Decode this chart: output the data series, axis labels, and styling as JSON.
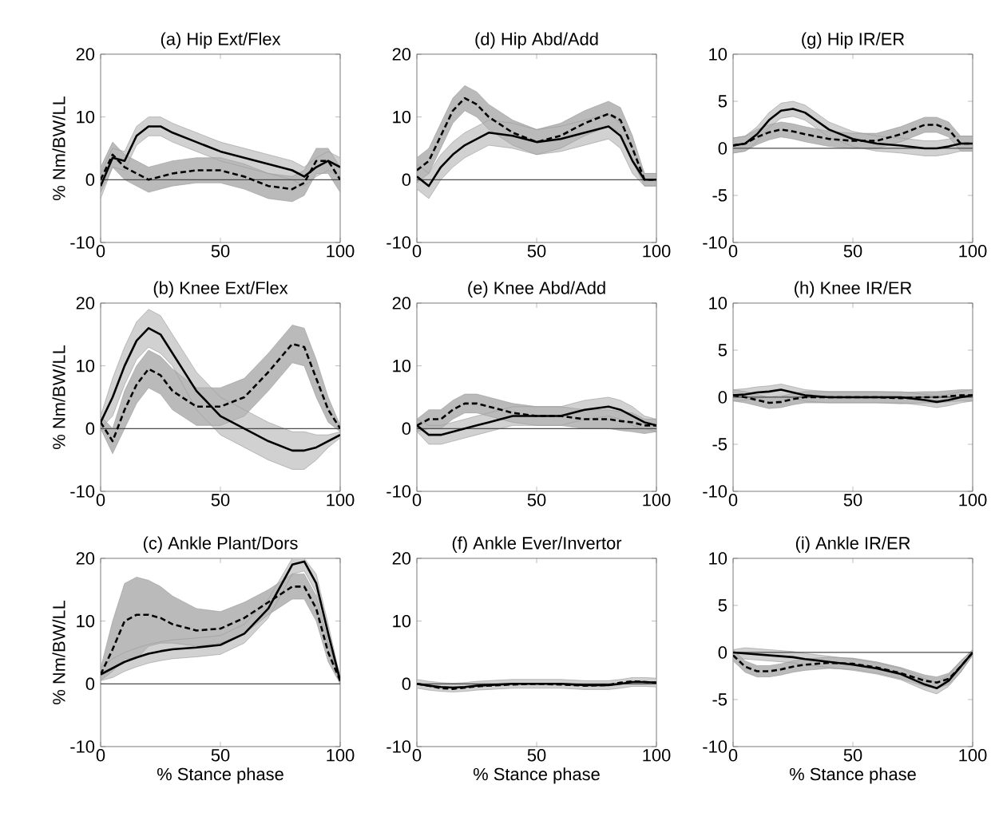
{
  "chart_data": [
    {
      "type": "line",
      "title": "(a) Hip Ext/Flex",
      "ylabel": "% Nm/BW/LL",
      "xlim": [
        0,
        100
      ],
      "xticks": [
        0,
        50,
        100
      ],
      "ylim": [
        -10,
        20
      ],
      "yticks": [
        -10,
        0,
        10,
        20
      ],
      "ref_lines": [
        {
          "axis": "y",
          "value": 0
        }
      ],
      "x": [
        0,
        5,
        10,
        15,
        20,
        25,
        30,
        40,
        50,
        60,
        70,
        80,
        85,
        90,
        95,
        100
      ],
      "series": [
        {
          "color": "#000000",
          "line_style": "solid",
          "values": [
            -1,
            3.5,
            3,
            7,
            8.5,
            8.5,
            7.5,
            6,
            4.5,
            3.5,
            2.5,
            1.5,
            0.5,
            2,
            3,
            2
          ],
          "lower": [
            -3,
            2,
            1.5,
            5.5,
            7,
            7,
            6,
            4.5,
            3,
            2,
            1,
            0,
            -1,
            0.5,
            1.5,
            0.5
          ],
          "upper": [
            1,
            5,
            4.5,
            8.5,
            10,
            10,
            9,
            7.5,
            6,
            5,
            4,
            3,
            2,
            3.5,
            4.5,
            3.5
          ]
        },
        {
          "color": "#000000",
          "line_style": "dashed",
          "values": [
            0,
            4,
            2,
            1,
            0,
            0.5,
            1,
            1.5,
            1.5,
            0.5,
            -1,
            -1.5,
            -0.5,
            3,
            3,
            0
          ],
          "lower": [
            -2,
            2,
            0,
            -1,
            -2,
            -1.5,
            -1,
            -0.5,
            -0.5,
            -1.5,
            -3,
            -3.5,
            -2.5,
            1,
            1,
            -2
          ],
          "upper": [
            2,
            6,
            4,
            3,
            2,
            2.5,
            3,
            3.5,
            3.5,
            2.5,
            1,
            0.5,
            1.5,
            5,
            5,
            2
          ]
        }
      ]
    },
    {
      "type": "line",
      "title": "(d) Hip Abd/Add",
      "xlim": [
        0,
        100
      ],
      "xticks": [
        0,
        50,
        100
      ],
      "ylim": [
        -10,
        20
      ],
      "yticks": [
        -10,
        0,
        10,
        20
      ],
      "ref_lines": [
        {
          "axis": "y",
          "value": 0
        }
      ],
      "x": [
        0,
        5,
        10,
        15,
        20,
        25,
        30,
        40,
        50,
        60,
        70,
        80,
        85,
        90,
        95,
        100
      ],
      "series": [
        {
          "color": "#000000",
          "line_style": "solid",
          "values": [
            0.5,
            -1,
            2,
            4,
            5.5,
            6.5,
            7.5,
            7,
            6,
            6.5,
            7.5,
            8.5,
            7,
            3,
            0,
            0
          ],
          "lower": [
            -1.5,
            -3,
            0,
            2,
            3.5,
            4.5,
            5.5,
            5,
            4,
            4.5,
            5.5,
            6.5,
            5,
            1,
            -1,
            -1
          ],
          "upper": [
            2.5,
            1,
            4,
            6,
            7.5,
            8.5,
            9.5,
            9,
            8,
            8.5,
            9.5,
            10.5,
            9,
            5,
            1,
            1
          ]
        },
        {
          "color": "#000000",
          "line_style": "dashed",
          "values": [
            1.5,
            3,
            7,
            11,
            13,
            12,
            10,
            7.5,
            6,
            7,
            9,
            10.5,
            9.5,
            5,
            0,
            0
          ],
          "lower": [
            -0.5,
            1,
            5,
            9,
            11,
            10,
            8,
            5.5,
            4,
            5,
            7,
            8.5,
            7.5,
            3,
            -1,
            -1
          ],
          "upper": [
            3.5,
            5,
            9,
            13,
            15,
            14,
            12,
            9.5,
            8,
            9,
            11,
            12.5,
            11.5,
            7,
            1,
            1
          ]
        }
      ]
    },
    {
      "type": "line",
      "title": "(g) Hip IR/ER",
      "xlim": [
        0,
        100
      ],
      "xticks": [
        0,
        50,
        100
      ],
      "ylim": [
        -10,
        10
      ],
      "yticks": [
        -10,
        -5,
        0,
        5,
        10
      ],
      "ref_lines": [
        {
          "axis": "y",
          "value": 0
        }
      ],
      "x": [
        0,
        5,
        10,
        15,
        20,
        25,
        30,
        40,
        50,
        60,
        70,
        80,
        85,
        90,
        95,
        100
      ],
      "series": [
        {
          "color": "#000000",
          "line_style": "solid",
          "values": [
            0.3,
            0.5,
            1.5,
            3,
            4,
            4.2,
            3.8,
            2,
            1,
            0.5,
            0.3,
            0,
            0,
            0.2,
            0.5,
            0.5
          ],
          "lower": [
            -0.5,
            -0.3,
            0.7,
            2.2,
            3.2,
            3.4,
            3,
            1.2,
            0.2,
            -0.3,
            -0.5,
            -0.8,
            -0.8,
            -0.6,
            -0.3,
            -0.3
          ],
          "upper": [
            1.1,
            1.3,
            2.3,
            3.8,
            4.8,
            5,
            4.6,
            2.8,
            1.8,
            1.3,
            1.1,
            0.8,
            0.8,
            1,
            1.3,
            1.3
          ]
        },
        {
          "color": "#000000",
          "line_style": "dashed",
          "values": [
            0.3,
            0.5,
            1.2,
            1.7,
            2,
            1.8,
            1.5,
            1,
            0.8,
            0.8,
            1.5,
            2.5,
            2.5,
            2,
            0.5,
            0.5
          ],
          "lower": [
            -0.5,
            -0.3,
            0.4,
            0.9,
            1.2,
            1,
            0.7,
            0.2,
            0,
            0,
            0.7,
            1.7,
            1.7,
            1.2,
            -0.3,
            -0.3
          ],
          "upper": [
            1.1,
            1.3,
            2,
            2.5,
            2.8,
            2.6,
            2.3,
            1.8,
            1.6,
            1.6,
            2.3,
            3.3,
            3.3,
            2.8,
            1.3,
            1.3
          ]
        }
      ]
    },
    {
      "type": "line",
      "title": "(b) Knee Ext/Flex",
      "ylabel": "% Nm/BW/LL",
      "xlim": [
        0,
        100
      ],
      "xticks": [
        0,
        50,
        100
      ],
      "ylim": [
        -10,
        20
      ],
      "yticks": [
        -10,
        0,
        10,
        20
      ],
      "ref_lines": [
        {
          "axis": "y",
          "value": 0
        }
      ],
      "x": [
        0,
        5,
        10,
        15,
        20,
        25,
        30,
        40,
        50,
        60,
        70,
        80,
        85,
        90,
        95,
        100
      ],
      "series": [
        {
          "color": "#000000",
          "line_style": "solid",
          "values": [
            1,
            5,
            10,
            14,
            16,
            15,
            12,
            6,
            2,
            0,
            -2,
            -3.5,
            -3.5,
            -3,
            -2,
            -1
          ],
          "lower": [
            0,
            2,
            7,
            11,
            13,
            12,
            10,
            3,
            -1,
            -3,
            -5,
            -6.5,
            -6.5,
            -5,
            -3,
            -1.5
          ],
          "upper": [
            2,
            8,
            13,
            17,
            19,
            18,
            15,
            9,
            5,
            3,
            1,
            -0.5,
            -0.5,
            -1,
            -1,
            -0.5
          ]
        },
        {
          "color": "#000000",
          "line_style": "dashed",
          "values": [
            1,
            -2,
            3,
            7,
            9.5,
            8.5,
            6,
            3.5,
            3.5,
            5,
            9,
            13.5,
            13,
            8,
            3,
            0
          ],
          "lower": [
            0,
            -4,
            0,
            4,
            6.5,
            5.5,
            3,
            0.5,
            0.5,
            2,
            6,
            10.5,
            10,
            5,
            1,
            -0.5
          ],
          "upper": [
            2,
            0,
            6,
            10,
            12.5,
            11.5,
            9.5,
            6.5,
            6.5,
            8,
            12,
            16.5,
            16,
            11,
            5,
            0.5
          ]
        }
      ]
    },
    {
      "type": "line",
      "title": "(e) Knee Abd/Add",
      "xlim": [
        0,
        100
      ],
      "xticks": [
        0,
        50,
        100
      ],
      "ylim": [
        -10,
        20
      ],
      "yticks": [
        -10,
        0,
        10,
        20
      ],
      "ref_lines": [
        {
          "axis": "y",
          "value": 0
        }
      ],
      "x": [
        0,
        5,
        10,
        15,
        20,
        25,
        30,
        40,
        50,
        60,
        70,
        80,
        85,
        90,
        95,
        100
      ],
      "series": [
        {
          "color": "#000000",
          "line_style": "solid",
          "values": [
            0.5,
            -1,
            -1,
            -0.5,
            0,
            0.5,
            1,
            2,
            2,
            2,
            3,
            3.5,
            3,
            2,
            1,
            0.5
          ],
          "lower": [
            -0.5,
            -2.5,
            -2.5,
            -2,
            -1.5,
            -1,
            -0.5,
            0.5,
            0.5,
            0.5,
            1.5,
            2,
            1.5,
            0.5,
            0,
            -0.5
          ],
          "upper": [
            1.5,
            0.5,
            0.5,
            1,
            1.5,
            2,
            2.5,
            3.5,
            3.5,
            3.5,
            4.5,
            5,
            4.5,
            3.5,
            2,
            1.5
          ]
        },
        {
          "color": "#000000",
          "line_style": "dashed",
          "values": [
            0.5,
            1.5,
            1.5,
            3,
            4,
            4,
            3.5,
            2.5,
            2,
            2,
            1.5,
            1.5,
            1.2,
            1,
            0.5,
            0.5
          ],
          "lower": [
            -0.5,
            0,
            0,
            1.5,
            2.5,
            2.5,
            2,
            1,
            0.5,
            0.5,
            0,
            0,
            -0.3,
            -0.5,
            -0.8,
            -0.5
          ],
          "upper": [
            1.5,
            3,
            3,
            4.5,
            5.5,
            5.5,
            5,
            4,
            3.5,
            3.5,
            3,
            3,
            2.7,
            2.5,
            1.5,
            1.5
          ]
        }
      ]
    },
    {
      "type": "line",
      "title": "(h) Knee IR/ER",
      "xlim": [
        0,
        100
      ],
      "xticks": [
        0,
        50,
        100
      ],
      "ylim": [
        -10,
        10
      ],
      "yticks": [
        -10,
        -5,
        0,
        5,
        10
      ],
      "ref_lines": [
        {
          "axis": "y",
          "value": 0
        }
      ],
      "x": [
        0,
        5,
        10,
        15,
        20,
        25,
        30,
        40,
        50,
        60,
        70,
        80,
        85,
        90,
        95,
        100
      ],
      "series": [
        {
          "color": "#000000",
          "line_style": "solid",
          "values": [
            0.2,
            0.3,
            0.5,
            0.6,
            0.8,
            0.5,
            0.2,
            0,
            0,
            0,
            0,
            -0.3,
            -0.5,
            -0.3,
            0,
            0.2
          ],
          "lower": [
            -0.4,
            -0.3,
            -0.1,
            0,
            0.2,
            -0.1,
            -0.4,
            -0.6,
            -0.6,
            -0.6,
            -0.6,
            -0.9,
            -1.1,
            -0.9,
            -0.6,
            -0.4
          ],
          "upper": [
            0.8,
            0.9,
            1.1,
            1.2,
            1.4,
            1.1,
            0.8,
            0.6,
            0.6,
            0.6,
            0.6,
            0.3,
            0.1,
            0.3,
            0.6,
            0.8
          ]
        },
        {
          "color": "#000000",
          "line_style": "dashed",
          "values": [
            0.2,
            0,
            -0.3,
            -0.6,
            -0.5,
            -0.2,
            0,
            0,
            0,
            0,
            -0.1,
            0,
            0,
            0.1,
            0.2,
            0.2
          ],
          "lower": [
            -0.4,
            -0.6,
            -0.9,
            -1.2,
            -1.1,
            -0.8,
            -0.6,
            -0.6,
            -0.6,
            -0.6,
            -0.7,
            -0.6,
            -0.6,
            -0.5,
            -0.4,
            -0.4
          ],
          "upper": [
            0.8,
            0.6,
            0.3,
            0,
            0.1,
            0.4,
            0.6,
            0.6,
            0.6,
            0.6,
            0.5,
            0.6,
            0.6,
            0.7,
            0.8,
            0.8
          ]
        }
      ]
    },
    {
      "type": "line",
      "title": "(c) Ankle Plant/Dors",
      "ylabel": "% Nm/BW/LL",
      "xlabel": "% Stance phase",
      "xlim": [
        0,
        100
      ],
      "xticks": [
        0,
        50,
        100
      ],
      "ylim": [
        -10,
        20
      ],
      "yticks": [
        -10,
        0,
        10,
        20
      ],
      "ref_lines": [
        {
          "axis": "y",
          "value": 0
        }
      ],
      "x": [
        0,
        5,
        10,
        15,
        20,
        25,
        30,
        40,
        50,
        60,
        70,
        80,
        85,
        90,
        95,
        100
      ],
      "series": [
        {
          "color": "#000000",
          "line_style": "solid",
          "values": [
            1.5,
            2.5,
            3.5,
            4.2,
            4.8,
            5.2,
            5.5,
            5.8,
            6.2,
            8,
            12,
            19,
            19.5,
            16,
            8,
            0.5
          ],
          "lower": [
            0.5,
            1,
            2,
            2.7,
            3.3,
            3.7,
            4,
            4.3,
            4.7,
            6.5,
            10.5,
            17.5,
            18,
            14.5,
            6.5,
            0
          ],
          "upper": [
            2.5,
            4,
            5,
            5.7,
            6.3,
            6.7,
            7,
            7.3,
            7.7,
            9.5,
            13.5,
            20,
            20,
            17.5,
            9.5,
            1
          ]
        },
        {
          "color": "#000000",
          "line_style": "dashed",
          "values": [
            1.5,
            5.5,
            10,
            11,
            11,
            10.5,
            9.5,
            8.5,
            8.8,
            10.5,
            13,
            15.5,
            15.5,
            12,
            5,
            0.5
          ],
          "lower": [
            0.5,
            2,
            4,
            4,
            6,
            6.5,
            6.5,
            6,
            6.5,
            8,
            11,
            13.5,
            13.5,
            10,
            3.5,
            0
          ],
          "upper": [
            2.5,
            10,
            16,
            17,
            16.5,
            15.5,
            14,
            12,
            11.5,
            13,
            15,
            17.5,
            17.5,
            14,
            6.5,
            1
          ]
        }
      ]
    },
    {
      "type": "line",
      "title": "(f) Ankle Ever/Invertor",
      "xlabel": "% Stance phase",
      "xlim": [
        0,
        100
      ],
      "xticks": [
        0,
        50,
        100
      ],
      "ylim": [
        -10,
        20
      ],
      "yticks": [
        -10,
        0,
        10,
        20
      ],
      "ref_lines": [
        {
          "axis": "y",
          "value": 0
        }
      ],
      "x": [
        0,
        5,
        10,
        15,
        20,
        25,
        30,
        40,
        50,
        60,
        70,
        80,
        85,
        90,
        95,
        100
      ],
      "series": [
        {
          "color": "#000000",
          "line_style": "solid",
          "values": [
            0,
            -0.3,
            -0.5,
            -0.6,
            -0.5,
            -0.3,
            -0.2,
            0,
            0,
            0,
            -0.2,
            -0.2,
            0,
            0.3,
            0.3,
            0.2
          ],
          "lower": [
            -0.7,
            -1,
            -1.2,
            -1.3,
            -1.2,
            -1,
            -0.9,
            -0.7,
            -0.7,
            -0.7,
            -0.9,
            -0.9,
            -0.7,
            -0.4,
            -0.4,
            -0.5
          ],
          "upper": [
            0.7,
            0.4,
            0.2,
            0.1,
            0.2,
            0.4,
            0.5,
            0.7,
            0.7,
            0.7,
            0.5,
            0.5,
            0.7,
            1,
            1,
            0.9
          ]
        },
        {
          "color": "#000000",
          "line_style": "dashed",
          "values": [
            0,
            -0.3,
            -0.7,
            -0.8,
            -0.6,
            -0.4,
            -0.3,
            -0.1,
            0,
            -0.1,
            -0.3,
            -0.2,
            0.2,
            0.4,
            0.3,
            0.2
          ]
        }
      ]
    },
    {
      "type": "line",
      "title": "(i) Ankle IR/ER",
      "xlabel": "% Stance phase",
      "xlim": [
        0,
        100
      ],
      "xticks": [
        0,
        50,
        100
      ],
      "ylim": [
        -10,
        10
      ],
      "yticks": [
        -10,
        -5,
        0,
        5,
        10
      ],
      "ref_lines": [
        {
          "axis": "y",
          "value": 0
        }
      ],
      "x": [
        0,
        5,
        10,
        15,
        20,
        25,
        30,
        40,
        50,
        60,
        70,
        80,
        85,
        90,
        95,
        100
      ],
      "series": [
        {
          "color": "#000000",
          "line_style": "solid",
          "values": [
            0,
            -0.1,
            -0.2,
            -0.3,
            -0.4,
            -0.5,
            -0.7,
            -1,
            -1.3,
            -1.7,
            -2.3,
            -3.4,
            -3.8,
            -3,
            -1.5,
            0
          ],
          "lower": [
            -0.6,
            -0.7,
            -0.8,
            -0.9,
            -1,
            -1.1,
            -1.3,
            -1.6,
            -1.9,
            -2.3,
            -2.9,
            -4,
            -4.4,
            -3.6,
            -2.1,
            -0.3
          ],
          "upper": [
            0.3,
            0.5,
            0.4,
            0.3,
            0.2,
            0.1,
            -0.1,
            -0.4,
            -0.7,
            -1.1,
            -1.7,
            -2.8,
            -3.2,
            -2.4,
            -0.9,
            0.3
          ]
        },
        {
          "color": "#000000",
          "line_style": "dashed",
          "values": [
            -0.3,
            -1.5,
            -2,
            -2,
            -1.8,
            -1.5,
            -1.3,
            -1.1,
            -1.2,
            -1.6,
            -2.2,
            -3,
            -3.2,
            -2.8,
            -1.5,
            0
          ],
          "lower": [
            -0.9,
            -2.1,
            -2.6,
            -2.6,
            -2.4,
            -2.1,
            -1.9,
            -1.7,
            -1.8,
            -2.2,
            -2.8,
            -3.6,
            -3.8,
            -3.4,
            -2.1,
            -0.3
          ],
          "upper": [
            0.3,
            -0.9,
            -1.4,
            -1.4,
            -1.2,
            -0.9,
            -0.7,
            -0.5,
            -0.6,
            -1,
            -1.6,
            -2.4,
            -2.6,
            -2.2,
            -0.9,
            0.3
          ]
        }
      ]
    }
  ]
}
